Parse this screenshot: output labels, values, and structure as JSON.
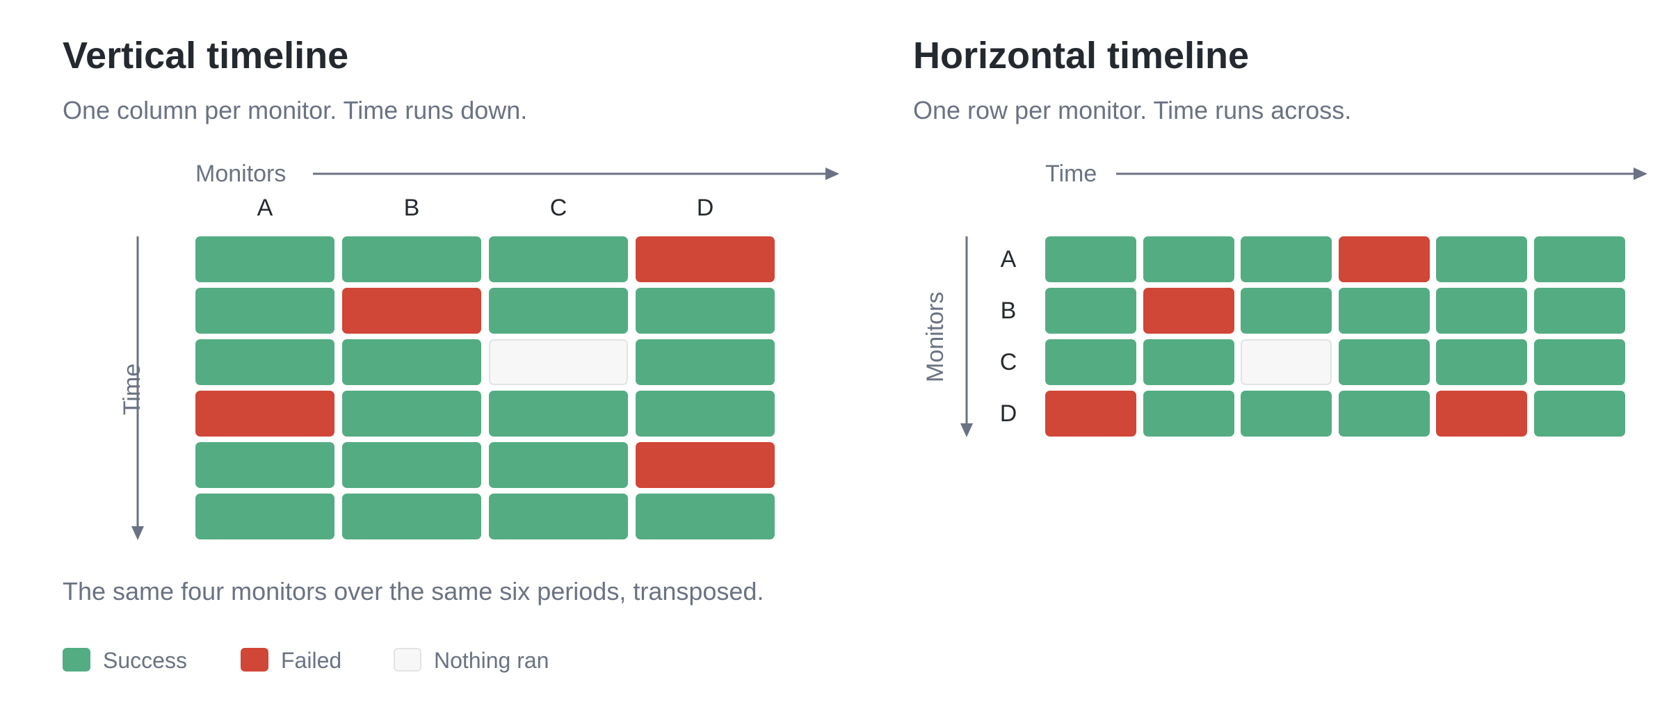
{
  "vertical": {
    "title": "Vertical timeline",
    "subtitle": "One column per monitor. Time runs down.",
    "x_axis_label": "Monitors",
    "y_axis_label": "Time",
    "monitors": [
      "A",
      "B",
      "C",
      "D"
    ],
    "grid": [
      [
        "success",
        "success",
        "success",
        "failed"
      ],
      [
        "success",
        "failed",
        "success",
        "success"
      ],
      [
        "success",
        "success",
        "nothing",
        "success"
      ],
      [
        "failed",
        "success",
        "success",
        "success"
      ],
      [
        "success",
        "success",
        "success",
        "failed"
      ],
      [
        "success",
        "success",
        "success",
        "success"
      ]
    ]
  },
  "horizontal": {
    "title": "Horizontal timeline",
    "subtitle": "One row per monitor. Time runs across.",
    "x_axis_label": "Time",
    "y_axis_label": "Monitors",
    "monitors": [
      "A",
      "B",
      "C",
      "D"
    ],
    "grid": [
      [
        "success",
        "success",
        "success",
        "failed",
        "success",
        "success"
      ],
      [
        "success",
        "failed",
        "success",
        "success",
        "success",
        "success"
      ],
      [
        "success",
        "success",
        "nothing",
        "success",
        "success",
        "success"
      ],
      [
        "failed",
        "success",
        "success",
        "success",
        "failed",
        "success"
      ]
    ]
  },
  "footnote": "The same four monitors over the same six periods, transposed.",
  "legend": [
    {
      "label": "Success",
      "status": "success",
      "color": "#54ac83"
    },
    {
      "label": "Failed",
      "status": "failed",
      "color": "#d04637"
    },
    {
      "label": "Nothing ran",
      "status": "nothing",
      "color": "#f7f7f7"
    }
  ],
  "colors": {
    "success": "#54ac83",
    "failed": "#d04637",
    "nothing": "#f7f7f7",
    "axis": "#6a7283"
  }
}
